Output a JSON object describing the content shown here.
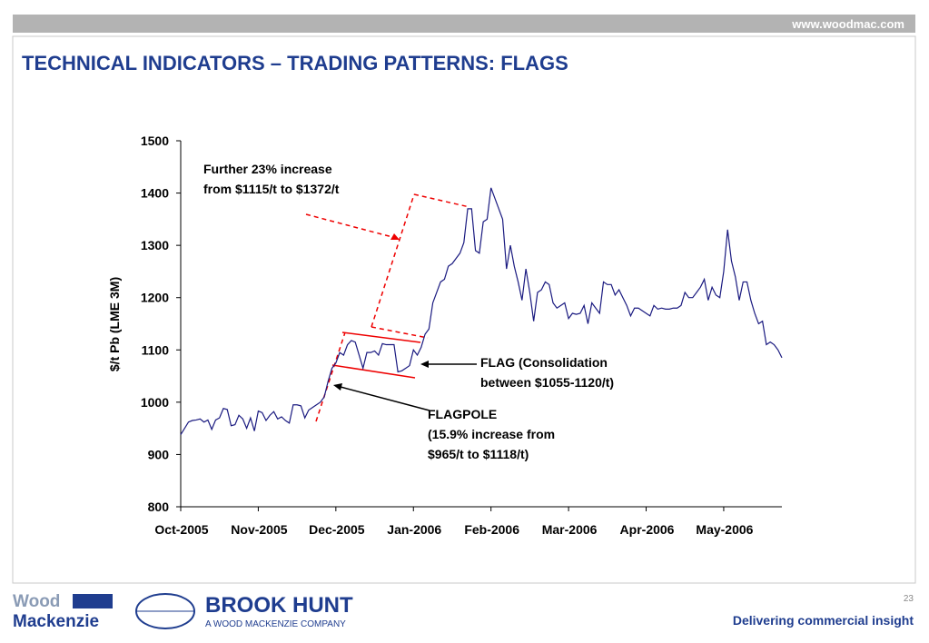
{
  "header": {
    "url": "www.woodmac.com",
    "title": "TECHNICAL INDICATORS – TRADING PATTERNS: FLAGS"
  },
  "chart_data": {
    "type": "line",
    "ylabel": "$/t Pb (LME 3M)",
    "annotations": [
      [
        "Further 23% increase",
        "from $1115/t to $1372/t"
      ],
      [
        "FLAG (Consolidation",
        "between $1055-1120/t)"
      ],
      [
        "FLAGPOLE",
        "(15.9% increase from",
        "$965/t to $1118/t)"
      ]
    ],
    "categories": [
      "Oct-2005",
      null,
      null,
      null,
      null,
      null,
      null,
      null,
      null,
      null,
      null,
      null,
      null,
      null,
      null,
      null,
      null,
      null,
      null,
      null,
      "Nov-2005",
      null,
      null,
      null,
      null,
      null,
      null,
      null,
      null,
      null,
      null,
      null,
      null,
      null,
      null,
      null,
      null,
      null,
      null,
      null,
      "Dec-2005",
      null,
      null,
      null,
      null,
      null,
      null,
      null,
      null,
      null,
      null,
      null,
      null,
      null,
      null,
      null,
      null,
      null,
      null,
      null,
      "Jan-2006",
      null,
      null,
      null,
      null,
      null,
      null,
      null,
      null,
      null,
      null,
      null,
      null,
      null,
      null,
      null,
      null,
      null,
      null,
      null,
      "Feb-2006",
      null,
      null,
      null,
      null,
      null,
      null,
      null,
      null,
      null,
      null,
      null,
      null,
      null,
      null,
      null,
      null,
      null,
      null,
      null,
      "Mar-2006",
      null,
      null,
      null,
      null,
      null,
      null,
      null,
      null,
      null,
      null,
      null,
      null,
      null,
      null,
      null,
      null,
      null,
      null,
      null,
      "Apr-2006",
      null,
      null,
      null,
      null,
      null,
      null,
      null,
      null,
      null,
      null,
      null,
      null,
      null,
      null,
      null,
      null,
      null,
      null,
      null,
      "May-2006",
      null,
      null,
      null,
      null,
      null,
      null,
      null,
      null,
      null,
      null,
      null,
      null,
      null,
      null,
      null
    ],
    "values": [
      938,
      950,
      962,
      965,
      966,
      968,
      962,
      966,
      948,
      966,
      970,
      988,
      986,
      955,
      957,
      975,
      968,
      950,
      970,
      945,
      983,
      980,
      965,
      975,
      982,
      968,
      972,
      965,
      960,
      995,
      995,
      993,
      970,
      985,
      990,
      995,
      1000,
      1010,
      1040,
      1065,
      1075,
      1095,
      1090,
      1110,
      1118,
      1115,
      1090,
      1065,
      1095,
      1095,
      1098,
      1090,
      1112,
      1110,
      1110,
      1110,
      1058,
      1060,
      1065,
      1070,
      1100,
      1090,
      1105,
      1130,
      1140,
      1190,
      1210,
      1230,
      1235,
      1260,
      1265,
      1275,
      1285,
      1305,
      1370,
      1370,
      1290,
      1285,
      1345,
      1350,
      1410,
      1390,
      1370,
      1350,
      1255,
      1300,
      1260,
      1230,
      1195,
      1255,
      1210,
      1155,
      1210,
      1215,
      1230,
      1225,
      1190,
      1180,
      1185,
      1190,
      1160,
      1170,
      1168,
      1170,
      1185,
      1150,
      1190,
      1180,
      1170,
      1230,
      1225,
      1225,
      1205,
      1215,
      1200,
      1185,
      1165,
      1180,
      1180,
      1175,
      1170,
      1165,
      1185,
      1178,
      1180,
      1178,
      1178,
      1180,
      1180,
      1185,
      1210,
      1200,
      1200,
      1210,
      1220,
      1235,
      1195,
      1220,
      1205,
      1200,
      1250,
      1330,
      1270,
      1240,
      1195,
      1230,
      1230,
      1195,
      1170,
      1150,
      1155,
      1110,
      1115,
      1110,
      1100,
      1085
    ],
    "color": "#1a1a80",
    "ylim": [
      800,
      1500
    ],
    "yticks": [
      800,
      900,
      1000,
      1100,
      1200,
      1300,
      1400,
      1500
    ]
  },
  "footer": {
    "page": "23",
    "tagline": "Delivering commercial insight",
    "logo1": [
      "Wood",
      "Mackenzie"
    ],
    "logo2": [
      "BROOK HUNT",
      "A WOOD MACKENZIE COMPANY"
    ]
  }
}
